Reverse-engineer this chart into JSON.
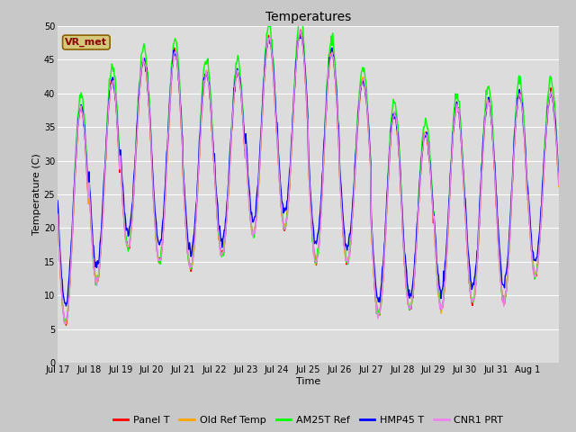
{
  "title": "Temperatures",
  "xlabel": "Time",
  "ylabel": "Temperature (C)",
  "legend_label": "VR_met",
  "series_names": [
    "Panel T",
    "Old Ref Temp",
    "AM25T Ref",
    "HMP45 T",
    "CNR1 PRT"
  ],
  "series_colors": [
    "red",
    "orange",
    "lime",
    "blue",
    "violet"
  ],
  "ylim": [
    0,
    50
  ],
  "fig_bg": "#c8c8c8",
  "axes_bg": "#dcdcdc",
  "grid_color": "#ffffff",
  "n_days": 16,
  "ticks": [
    "Jul 17",
    "Jul 18",
    "Jul 19",
    "Jul 20",
    "Jul 21",
    "Jul 22",
    "Jul 23",
    "Jul 24",
    "Jul 25",
    "Jul 26",
    "Jul 27",
    "Jul 28",
    "Jul 29",
    "Jul 30",
    "Jul 31",
    "Aug 1"
  ],
  "vr_met_label_color": "#8B0000",
  "vr_met_box_facecolor": "#d4c87a",
  "vr_met_box_edgecolor": "#8B6000",
  "title_fontsize": 10,
  "axis_label_fontsize": 8,
  "tick_fontsize": 7,
  "legend_fontsize": 8,
  "line_width": 1.0,
  "day_mins": [
    6,
    12,
    17,
    15,
    14,
    16,
    19,
    20,
    15,
    15,
    7,
    8,
    8,
    9,
    9,
    13
  ],
  "day_maxs": [
    38,
    42,
    45,
    46,
    43,
    43,
    48,
    49,
    46,
    42,
    37,
    34,
    38,
    39,
    40,
    40
  ]
}
